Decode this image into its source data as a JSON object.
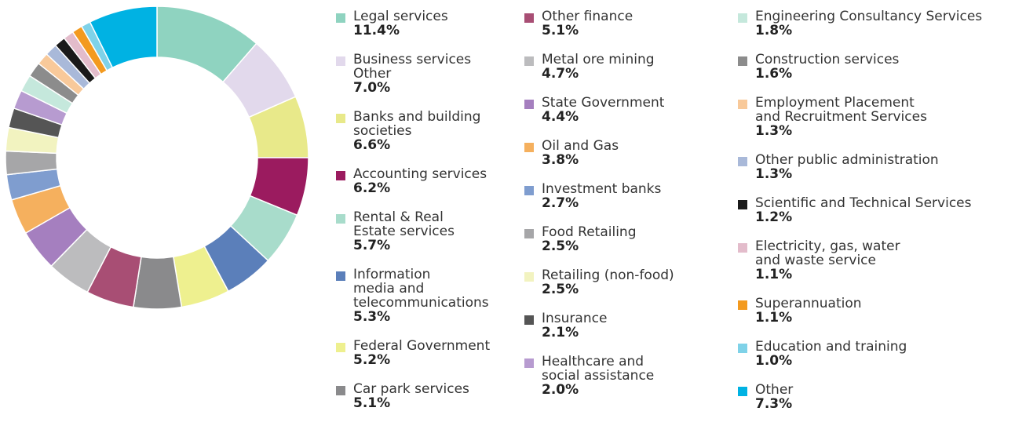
{
  "chart_data": {
    "type": "donut",
    "categories": [
      "Legal services",
      "Business services\nOther",
      "Banks and building\nsocieties",
      "Accounting services",
      "Rental & Real\nEstate services",
      "Information\nmedia and\ntelecommunications",
      "Federal Government",
      "Car park services",
      "Other finance",
      "Metal ore mining",
      "State Government",
      "Oil and Gas",
      "Investment banks",
      "Food Retailing",
      "Retailing (non-food)",
      "Insurance",
      "Healthcare and\nsocial assistance",
      "Engineering Consultancy Services",
      "Construction services",
      "Employment Placement\nand Recruitment Services",
      "Other public administration",
      "Scientific and Technical Services",
      "Electricity, gas, water\nand waste service",
      "Superannuation",
      "Education and training",
      "Other"
    ],
    "values": [
      11.4,
      7.0,
      6.6,
      6.2,
      5.7,
      5.3,
      5.2,
      5.1,
      5.1,
      4.7,
      4.4,
      3.8,
      2.7,
      2.5,
      2.5,
      2.1,
      2.0,
      1.8,
      1.6,
      1.3,
      1.3,
      1.2,
      1.1,
      1.1,
      1.0,
      7.3
    ],
    "value_labels": [
      "11.4%",
      "7.0%",
      "6.6%",
      "6.2%",
      "5.7%",
      "5.3%",
      "5.2%",
      "5.1%",
      "5.1%",
      "4.7%",
      "4.4%",
      "3.8%",
      "2.7%",
      "2.5%",
      "2.5%",
      "2.1%",
      "2.0%",
      "1.8%",
      "1.6%",
      "1.3%",
      "1.3%",
      "1.2%",
      "1.1%",
      "1.1%",
      "1.0%",
      "7.3%"
    ],
    "colors": [
      "#8fd3c0",
      "#e2d9ec",
      "#e8e98a",
      "#9b1b5f",
      "#a8dccb",
      "#5b7fba",
      "#eef08f",
      "#8a8a8c",
      "#a84e74",
      "#bcbcbe",
      "#a57fbf",
      "#f5b05e",
      "#7f9dcf",
      "#a6a6a8",
      "#f2f3c0",
      "#555555",
      "#b79bd0",
      "#c5e8dc",
      "#8c8c8c",
      "#f8c99a",
      "#a9b9d9",
      "#1a1a1a",
      "#e3bccb",
      "#f39a1f",
      "#7fd2e8",
      "#00b2e3"
    ]
  }
}
